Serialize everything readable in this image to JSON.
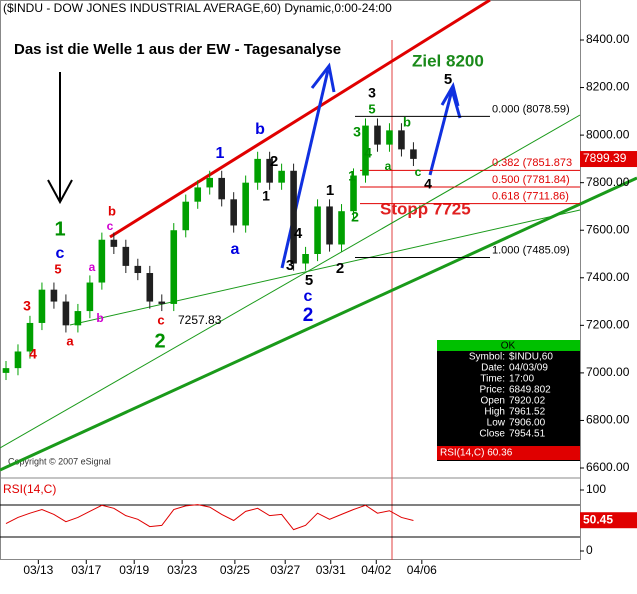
{
  "chart_data": {
    "type": "candlestick",
    "title": "($INDU - DOW JONES INDUSTRIAL AVERAGE,60) Dynamic,0:00-24:00",
    "subtitle": "Das ist die Welle 1 aus der EW - Tagesanalyse",
    "copyright": "Copyright © 2007 eSignal",
    "target_label": "Ziel 8200",
    "stop_label": "Stopp 7725",
    "up_color": "#00a000",
    "down_color": "#202020",
    "x": [
      0.25,
      0.75,
      1.25,
      1.75,
      2.25,
      2.75,
      3.25,
      3.75,
      4.25,
      4.75,
      5.25,
      5.75,
      6.25,
      6.75,
      7.25,
      7.75,
      8.25,
      8.75,
      9.25,
      9.75,
      10.25,
      10.75,
      11.25,
      11.75,
      12.25,
      12.75,
      13.25,
      13.75,
      14.25,
      14.75,
      15.25,
      15.75,
      16.25,
      16.75,
      17.25
    ],
    "open": [
      7000,
      7020,
      7090,
      7210,
      7350,
      7300,
      7200,
      7260,
      7380,
      7560,
      7530,
      7450,
      7420,
      7300,
      7290,
      7600,
      7720,
      7780,
      7820,
      7730,
      7620,
      7800,
      7900,
      7800,
      7850,
      7460,
      7500,
      7700,
      7540,
      7680,
      7830,
      8040,
      7960,
      8020,
      7940
    ],
    "high": [
      7050,
      7120,
      7240,
      7380,
      7380,
      7330,
      7290,
      7410,
      7590,
      7590,
      7560,
      7480,
      7450,
      7330,
      7630,
      7750,
      7810,
      7850,
      7850,
      7760,
      7830,
      7930,
      7930,
      7880,
      7880,
      7530,
      7730,
      7730,
      7710,
      7860,
      8070,
      8070,
      8050,
      8050,
      7970
    ],
    "low": [
      6970,
      6990,
      7060,
      7180,
      7270,
      7170,
      7170,
      7230,
      7350,
      7500,
      7420,
      7390,
      7270,
      7260,
      7260,
      7570,
      7690,
      7750,
      7700,
      7590,
      7590,
      7770,
      7770,
      7770,
      7430,
      7430,
      7470,
      7510,
      7510,
      7650,
      7800,
      7930,
      7930,
      7910,
      7870
    ],
    "close": [
      7020,
      7090,
      7210,
      7350,
      7300,
      7200,
      7260,
      7380,
      7560,
      7530,
      7450,
      7420,
      7300,
      7290,
      7600,
      7720,
      7780,
      7820,
      7730,
      7620,
      7800,
      7900,
      7800,
      7850,
      7460,
      7500,
      7700,
      7540,
      7680,
      7830,
      8040,
      7960,
      8020,
      7940,
      7900
    ],
    "xlim": [
      0,
      24.2
    ],
    "xticks": [
      {
        "value": 1.6,
        "label": "03/13"
      },
      {
        "value": 3.6,
        "label": "03/17"
      },
      {
        "value": 5.6,
        "label": "03/19"
      },
      {
        "value": 7.6,
        "label": "03/23"
      },
      {
        "value": 9.8,
        "label": "03/25"
      },
      {
        "value": 11.9,
        "label": "03/27"
      },
      {
        "value": 13.8,
        "label": "03/31"
      },
      {
        "value": 15.7,
        "label": "04/02"
      },
      {
        "value": 17.6,
        "label": "04/06"
      }
    ],
    "ylim": [
      6600,
      8400
    ],
    "yticks": [
      {
        "value": 6600,
        "label": "6600.00"
      },
      {
        "value": 6800,
        "label": "6800.00"
      },
      {
        "value": 7000,
        "label": "7000.00"
      },
      {
        "value": 7200,
        "label": "7200.00"
      },
      {
        "value": 7400,
        "label": "7400.00"
      },
      {
        "value": 7600,
        "label": "7600.00"
      },
      {
        "value": 7800,
        "label": "7800.00"
      },
      {
        "value": 8000,
        "label": "8000.00"
      },
      {
        "value": 8200,
        "label": "8200.00"
      },
      {
        "value": 8400,
        "label": "8400.00"
      }
    ],
    "last_price": {
      "value": 7899.39,
      "label": "7899.39"
    },
    "fib_levels": [
      {
        "value": 8078.59,
        "label": "0.000 (8078.59)",
        "color": "#000000"
      },
      {
        "value": 7851.873,
        "label": "0.382 (7851.873",
        "color": "#e00000"
      },
      {
        "value": 7781.84,
        "label": "0.500 (7781.84)",
        "color": "#e00000"
      },
      {
        "value": 7711.86,
        "label": "0.618 (7711.86)",
        "color": "#e00000"
      },
      {
        "value": 7485.09,
        "label": "1.000 (7485.09)",
        "color": "#000000"
      }
    ],
    "low_label": "7257.83",
    "annotations": [
      {
        "text": "1",
        "color": "#009000"
      },
      {
        "text": "c",
        "color": "#0000e0"
      },
      {
        "text": "5",
        "color": "#e00000"
      },
      {
        "text": "3",
        "color": "#e00000"
      },
      {
        "text": "4",
        "color": "#e00000"
      },
      {
        "text": "a",
        "color": "#e00000"
      },
      {
        "text": "b",
        "color": "#d000d0"
      },
      {
        "text": "a",
        "color": "#d000d0"
      },
      {
        "text": "b",
        "color": "#e00000"
      },
      {
        "text": "c",
        "color": "#d000d0"
      },
      {
        "text": "c",
        "color": "#e00000"
      },
      {
        "text": "2",
        "color": "#009000"
      },
      {
        "text": "1",
        "color": "#0000e0"
      },
      {
        "text": "b",
        "color": "#0000e0"
      },
      {
        "text": "2",
        "color": "#000000"
      },
      {
        "text": "1",
        "color": "#000000"
      },
      {
        "text": "a",
        "color": "#0000e0"
      },
      {
        "text": "4",
        "color": "#000000"
      },
      {
        "text": "3",
        "color": "#000000"
      },
      {
        "text": "5",
        "color": "#000000"
      },
      {
        "text": "c",
        "color": "#0000e0"
      },
      {
        "text": "2",
        "color": "#0000e0"
      },
      {
        "text": "1",
        "color": "#000000"
      },
      {
        "text": "2",
        "color": "#000000"
      },
      {
        "text": "1",
        "color": "#009000"
      },
      {
        "text": "2",
        "color": "#009000"
      },
      {
        "text": "3",
        "color": "#000000"
      },
      {
        "text": "5",
        "color": "#009000"
      },
      {
        "text": "3",
        "color": "#009000"
      },
      {
        "text": "4",
        "color": "#009000"
      },
      {
        "text": "a",
        "color": "#009000"
      },
      {
        "text": "b",
        "color": "#009000"
      },
      {
        "text": "c",
        "color": "#009000"
      },
      {
        "text": "4",
        "color": "#000000"
      },
      {
        "text": "5",
        "color": "#000000"
      }
    ],
    "info_box": {
      "header": "OK",
      "rows": [
        [
          "Symbol:",
          "$INDU,60"
        ],
        [
          "Date:",
          "04/03/09"
        ],
        [
          "Time:",
          "17:00"
        ],
        [
          "Price:",
          "6849.802"
        ],
        [
          "Open",
          "7920.02"
        ],
        [
          "High",
          "7961.52"
        ],
        [
          "Low",
          "7906.00"
        ],
        [
          "Close",
          "7954.51"
        ]
      ],
      "rsi_row": "RSI(14,C) 60.36"
    },
    "rsi": {
      "title": "RSI(14,C)",
      "color": "#e00000",
      "ylim": [
        0,
        100
      ],
      "yticks": [
        0,
        100
      ],
      "last": {
        "value": 50.45,
        "label": "50.45"
      },
      "values": [
        45,
        55,
        62,
        68,
        60,
        48,
        55,
        65,
        75,
        70,
        58,
        52,
        40,
        42,
        68,
        74,
        76,
        72,
        60,
        50,
        65,
        70,
        58,
        60,
        35,
        42,
        62,
        52,
        60,
        68,
        75,
        62,
        66,
        55,
        50
      ]
    }
  }
}
